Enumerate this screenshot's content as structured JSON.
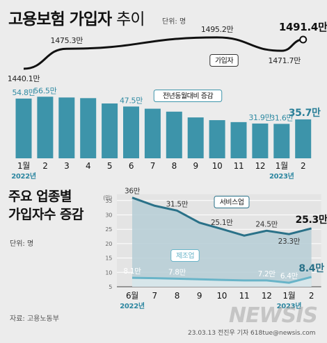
{
  "header": {
    "title_bold": "고용보험 가입자",
    "title_light": "추이",
    "unit": "단위: 명"
  },
  "section2": {
    "title_line1": "주요 업종별",
    "title_line2": "가입자수 증감",
    "unit": "단위: 명"
  },
  "footer": {
    "source": "자료: 고용노동부",
    "credit": "23.03.13 전진우 기자 618tue@newsis.com",
    "logo": "NEWSIS"
  },
  "colors": {
    "bar": "#3d94aa",
    "bar_label": "#2f8aa2",
    "bar_label_last": "#2a7f98",
    "line": "#111111",
    "service": "#2a7188",
    "service_fill": "#b6ced6",
    "manufacturing": "#69b4c8",
    "year_label": "#2c86a0"
  },
  "chart_data": [
    {
      "type": "line",
      "title": "고용보험 가입자 추이",
      "unit": "단위: 명",
      "series": [
        {
          "name": "가입자",
          "values": [
            1440.1,
            null,
            1475.3,
            null,
            null,
            null,
            null,
            null,
            null,
            1495.2,
            null,
            null,
            1471.7,
            1491.4
          ],
          "labels": [
            "1440.1만",
            "",
            "1475.3만",
            "",
            "",
            "",
            "",
            "",
            "",
            "1495.2만",
            "",
            "",
            "1471.7만",
            "1491.4만"
          ]
        }
      ]
    },
    {
      "type": "bar",
      "title": "",
      "categories": [
        "1월",
        "2",
        "3",
        "4",
        "5",
        "6",
        "7",
        "8",
        "9",
        "10",
        "11",
        "12",
        "1월",
        "2"
      ],
      "year_labels": [
        {
          "index": 0,
          "text": "2022년"
        },
        {
          "index": 12,
          "text": "2023년"
        }
      ],
      "series": [
        {
          "name": "전년동월대비 증감",
          "values": [
            54.8,
            56.5,
            55.8,
            55.2,
            50.3,
            47.5,
            45.5,
            42.8,
            37.5,
            35.0,
            33.2,
            31.9,
            31.6,
            35.7
          ],
          "labels": [
            "54.8만",
            "56.5만",
            "",
            "",
            "",
            "47.5만",
            "",
            "",
            "",
            "",
            "",
            "31.9만",
            "31.6만",
            "35.7만"
          ]
        }
      ]
    },
    {
      "type": "area",
      "title": "주요 업종별 가입자수 증감",
      "unit": "단위: 명",
      "categories": [
        "6월",
        "7",
        "8",
        "9",
        "10",
        "11",
        "12",
        "1월",
        "2"
      ],
      "year_labels": [
        {
          "index": 0,
          "text": "2022년"
        },
        {
          "index": 7,
          "text": "2023년"
        }
      ],
      "ylabel": "(만)",
      "yticks": [
        5,
        10,
        15,
        20,
        25,
        30,
        35
      ],
      "ylim": [
        5,
        37
      ],
      "series": [
        {
          "name": "서비스업",
          "values": [
            36,
            33.2,
            31.5,
            27.3,
            25.1,
            22.8,
            24.5,
            23.3,
            25.3
          ],
          "labels": [
            "36만",
            "",
            "31.5만",
            "",
            "25.1만",
            "",
            "24.5만",
            "23.3만",
            "25.3만"
          ]
        },
        {
          "name": "제조업",
          "values": [
            8.1,
            8.0,
            7.8,
            7.6,
            7.4,
            7.2,
            7.2,
            6.4,
            8.4
          ],
          "labels": [
            "8.1만",
            "",
            "7.8만",
            "",
            "",
            "",
            "7.2만",
            "6.4만",
            "8.4만"
          ]
        }
      ]
    }
  ]
}
